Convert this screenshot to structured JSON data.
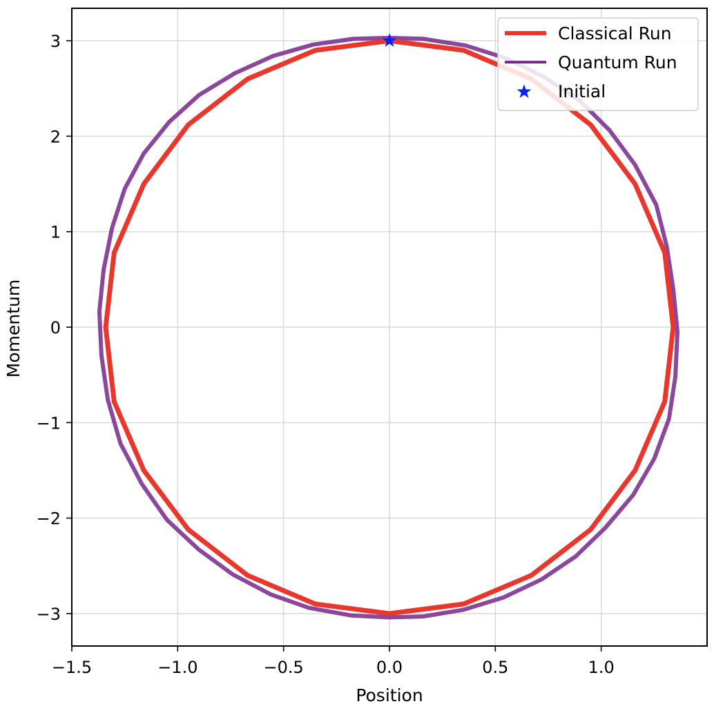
{
  "chart_data": {
    "type": "line",
    "title": "",
    "xlabel": "Position",
    "ylabel": "Momentum",
    "xlim": [
      -1.5,
      1.5
    ],
    "ylim": [
      -3.34,
      3.34
    ],
    "xticks": [
      -1.5,
      -1.0,
      -0.5,
      0.0,
      0.5,
      1.0
    ],
    "xtick_labels": [
      "−1.5",
      "−1.0",
      "−0.5",
      "0.0",
      "0.5",
      "1.0"
    ],
    "yticks": [
      -3,
      -2,
      -1,
      0,
      1,
      2,
      3
    ],
    "ytick_labels": [
      "−3",
      "−2",
      "−1",
      "0",
      "1",
      "2",
      "3"
    ],
    "grid": true,
    "legend_position": "top-right",
    "series": [
      {
        "name": "Classical Run",
        "kind": "line",
        "color": "#e8372c",
        "x": [
          0.0,
          0.35,
          0.67,
          0.95,
          1.16,
          1.3,
          1.34,
          1.3,
          1.16,
          0.95,
          0.67,
          0.35,
          0.0,
          -0.35,
          -0.67,
          -0.95,
          -1.16,
          -1.3,
          -1.34,
          -1.3,
          -1.16,
          -0.95,
          -0.67,
          -0.35,
          0.0
        ],
        "y": [
          3.0,
          2.9,
          2.6,
          2.12,
          1.5,
          0.78,
          0.0,
          -0.78,
          -1.5,
          -2.12,
          -2.6,
          -2.9,
          -3.0,
          -2.9,
          -2.6,
          -2.12,
          -1.5,
          -0.78,
          0.0,
          0.78,
          1.5,
          2.12,
          2.6,
          2.9,
          3.0
        ]
      },
      {
        "name": "Quantum Run",
        "kind": "line",
        "color": "#7b2d8e",
        "x": [
          0.0,
          0.16,
          0.36,
          0.56,
          0.73,
          0.9,
          1.04,
          1.16,
          1.26,
          1.31,
          1.34,
          1.36,
          1.35,
          1.32,
          1.25,
          1.15,
          1.02,
          0.88,
          0.72,
          0.54,
          0.35,
          0.16,
          0.0,
          -0.18,
          -0.38,
          -0.56,
          -0.74,
          -0.9,
          -1.05,
          -1.17,
          -1.27,
          -1.33,
          -1.36,
          -1.37,
          -1.35,
          -1.31,
          -1.25,
          -1.16,
          -1.04,
          -0.9,
          -0.73,
          -0.55,
          -0.36,
          -0.17,
          0.0
        ],
        "y": [
          3.03,
          3.02,
          2.95,
          2.81,
          2.62,
          2.37,
          2.06,
          1.7,
          1.28,
          0.84,
          0.4,
          -0.05,
          -0.52,
          -0.96,
          -1.38,
          -1.76,
          -2.1,
          -2.4,
          -2.64,
          -2.83,
          -2.96,
          -3.03,
          -3.04,
          -3.02,
          -2.94,
          -2.8,
          -2.59,
          -2.33,
          -2.02,
          -1.64,
          -1.22,
          -0.76,
          -0.3,
          0.16,
          0.6,
          1.04,
          1.45,
          1.82,
          2.15,
          2.43,
          2.66,
          2.84,
          2.96,
          3.02,
          3.03
        ]
      },
      {
        "name": "Initial",
        "kind": "marker",
        "marker": "star",
        "color": "#0a22f0",
        "x": [
          0.0
        ],
        "y": [
          3.0
        ]
      }
    ]
  }
}
